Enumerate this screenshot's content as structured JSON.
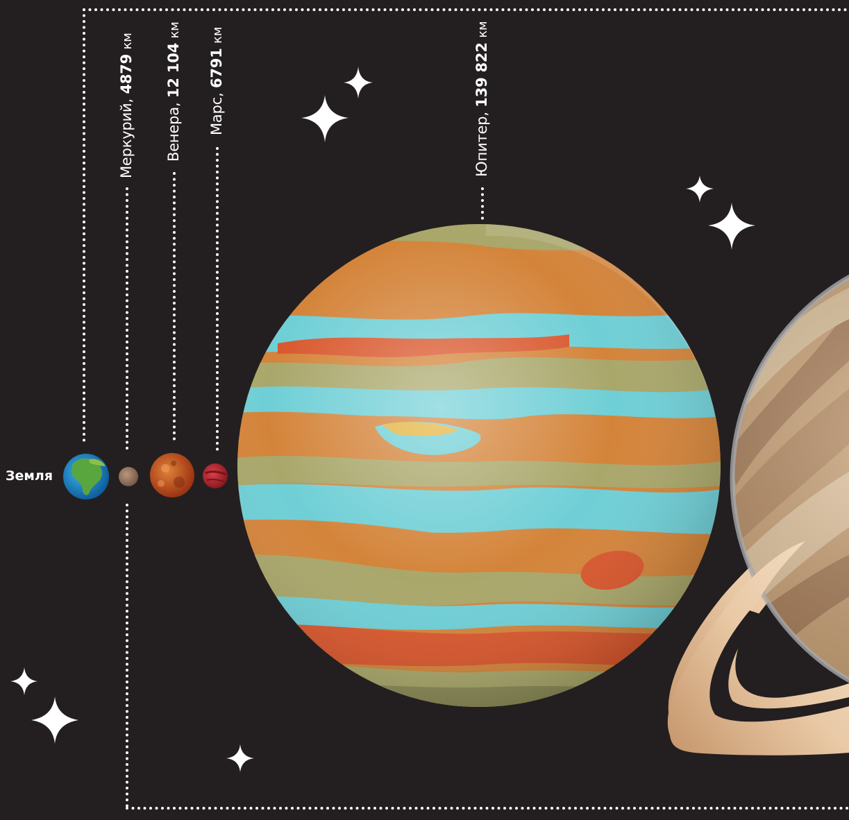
{
  "earth": {
    "name": "Земля"
  },
  "planets": [
    {
      "id": "mercury",
      "name": "Меркурий,",
      "diameter": "4879",
      "unit": "км"
    },
    {
      "id": "venus",
      "name": "Венера,",
      "diameter": "12 104",
      "unit": "км"
    },
    {
      "id": "mars",
      "name": "Марс,",
      "diameter": "6791",
      "unit": "км"
    },
    {
      "id": "jupiter",
      "name": "Юпитер,",
      "diameter": "139 822",
      "unit": "км"
    }
  ],
  "colors": {
    "background": "#231f20",
    "dots": "#ffffff",
    "jupiter_orange": "#d4843a",
    "jupiter_cyan": "#6fcfd6",
    "jupiter_olive": "#a9a76a",
    "jupiter_red": "#d9572d",
    "saturn": "#c79d6e",
    "mars": "#b3262e",
    "venus": "#c4501e",
    "mercury": "#9c7b66"
  }
}
